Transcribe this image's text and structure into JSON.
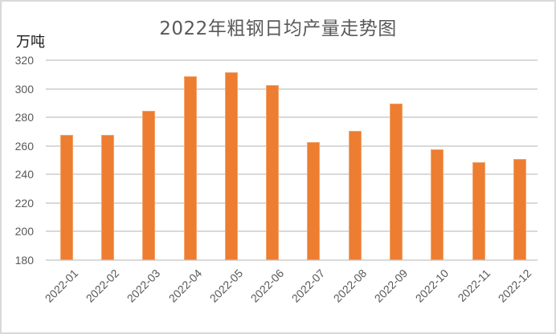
{
  "chart_data": {
    "type": "bar",
    "title": "2022年粗钢日均产量走势图",
    "xlabel": "",
    "ylabel": "万吨",
    "ylim": [
      180,
      320
    ],
    "yticks": [
      180,
      200,
      220,
      240,
      260,
      280,
      300,
      320
    ],
    "grid": true,
    "legend": null,
    "bar_color": "#ed7d31",
    "categories": [
      "2022-01",
      "2022-02",
      "2022-03",
      "2022-04",
      "2022-05",
      "2022-06",
      "2022-07",
      "2022-08",
      "2022-09",
      "2022-10",
      "2022-11",
      "2022-12"
    ],
    "series": [
      {
        "name": "粗钢日均产量",
        "values": [
          267.5,
          267.5,
          284.5,
          309.0,
          311.5,
          302.5,
          262.5,
          270.5,
          289.5,
          257.5,
          248.5,
          251.0
        ]
      }
    ]
  },
  "labels": {
    "title": "2022年粗钢日均产量走势图",
    "unit": "万吨"
  }
}
